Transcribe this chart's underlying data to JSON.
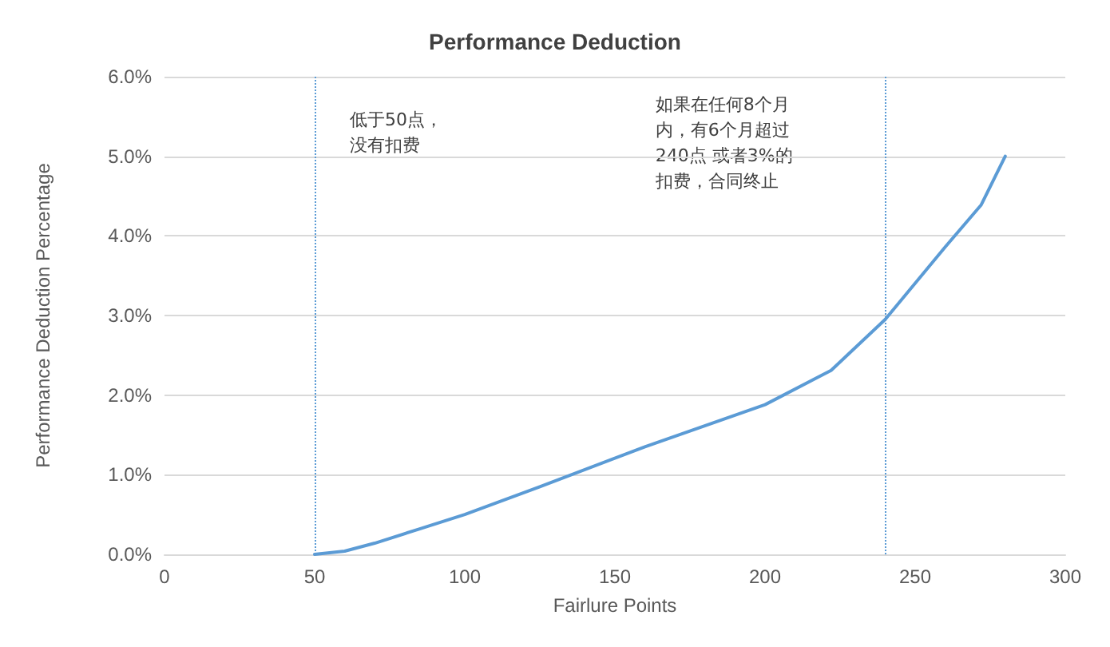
{
  "chart_data": {
    "type": "line",
    "title": "Performance Deduction",
    "xlabel": "Fairlure Points",
    "ylabel": "Performance Deduction Percentage",
    "x": [
      50,
      60,
      70,
      85,
      100,
      125,
      160,
      200,
      222,
      240,
      260,
      272,
      280
    ],
    "series": [
      {
        "color": "#5b9bd5",
        "values": [
          0,
          0.04,
          0.14,
          0.32,
          0.5,
          0.85,
          1.35,
          1.88,
          2.31,
          2.95,
          3.86,
          4.39,
          5.0
        ]
      }
    ],
    "xlim": [
      0,
      300
    ],
    "xticks": [
      0,
      50,
      100,
      150,
      200,
      250,
      300
    ],
    "ylim": [
      0,
      6
    ],
    "yticks": [
      {
        "value": 0,
        "label": "0.0%"
      },
      {
        "value": 1,
        "label": "1.0%"
      },
      {
        "value": 2,
        "label": "2.0%"
      },
      {
        "value": 3,
        "label": "3.0%"
      },
      {
        "value": 4,
        "label": "4.0%"
      },
      {
        "value": 5,
        "label": "5.0%"
      },
      {
        "value": 6,
        "label": "6.0%"
      }
    ],
    "grid": "y",
    "marker": "none",
    "line_style": "solid",
    "ref_lines": [
      {
        "axis": "x",
        "value": 50,
        "color": "#5b9bd5",
        "line_style": "dotted"
      },
      {
        "axis": "x",
        "value": 240,
        "color": "#5b9bd5",
        "line_style": "dotted"
      }
    ],
    "annotations": [
      "低于50点，没有扣费",
      "如果在任何8个月内，有6个月超过240点 或者3%的扣费，合同终止"
    ]
  }
}
